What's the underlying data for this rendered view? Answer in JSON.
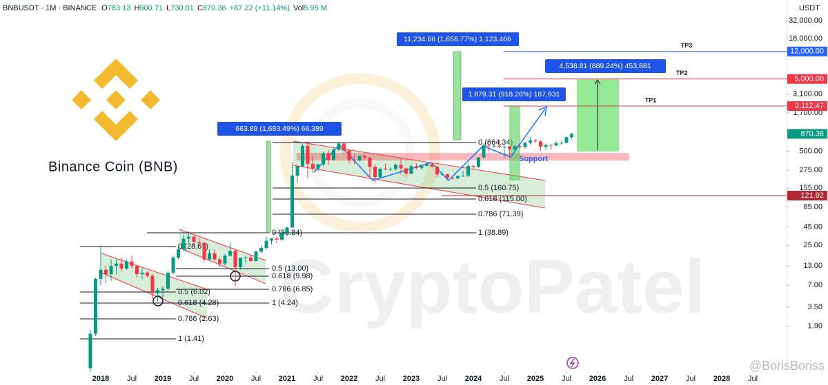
{
  "chart_data": {
    "type": "candlestick",
    "title": "Binance Coin (BNB)",
    "symbol": "BNBUSDT · 1M · BINANCE",
    "open_label": "O",
    "high_label": "H",
    "low_label": "L",
    "close_label": "C",
    "change": "+87.22 (+11.14%)",
    "volume_label": "Vol",
    "volume": "5.95 M",
    "y_axis_label": "USDT",
    "log_scale": true,
    "grid": false,
    "up_color": "#089981",
    "down_color": "#f23645",
    "xlim": [
      2016.378,
      2028.933
    ],
    "ylim": [
      0.445,
      61800
    ],
    "xticks": [
      2018,
      {
        "value": 2018.5,
        "label": "Jul"
      },
      2019,
      {
        "value": 2019.5,
        "label": "Jul"
      },
      2020,
      {
        "value": 2020.5,
        "label": "Jul"
      },
      2021,
      {
        "value": 2021.5,
        "label": "Jul"
      },
      2022,
      {
        "value": 2022.5,
        "label": "Jul"
      },
      2023,
      {
        "value": 2023.5,
        "label": "Jul"
      },
      2024,
      {
        "value": 2024.5,
        "label": "Jul"
      },
      2025,
      {
        "value": 2025.5,
        "label": "Jul"
      },
      2026,
      {
        "value": 2026.5,
        "label": "Jul"
      },
      2027,
      {
        "value": 2027.5,
        "label": "Jul"
      },
      2028,
      {
        "value": 2028.5,
        "label": "Jul"
      }
    ],
    "yticks": [
      {
        "value": 32000,
        "label": "32,000.00"
      },
      {
        "value": 18000,
        "label": "18,000.00"
      },
      {
        "value": 3100,
        "label": "3,100.00"
      },
      {
        "value": 1700,
        "label": "1,700.00"
      },
      {
        "value": 500,
        "label": "500.00"
      },
      {
        "value": 275,
        "label": "275.00"
      },
      {
        "value": 155,
        "label": "155.00"
      },
      {
        "value": 85,
        "label": "85.00"
      },
      {
        "value": 45,
        "label": "45.00"
      },
      {
        "value": 25,
        "label": "25.00"
      },
      {
        "value": 13,
        "label": "13.00"
      },
      {
        "value": 7,
        "label": "7.00"
      },
      {
        "value": 3.5,
        "label": "3.50"
      },
      {
        "value": 1.9,
        "label": "1.90"
      }
    ],
    "x": [
      2017.833,
      2017.917,
      2018.0,
      2018.083,
      2018.167,
      2018.25,
      2018.333,
      2018.417,
      2018.5,
      2018.583,
      2018.667,
      2018.75,
      2018.833,
      2018.917,
      2019.0,
      2019.083,
      2019.167,
      2019.25,
      2019.333,
      2019.417,
      2019.5,
      2019.583,
      2019.667,
      2019.75,
      2019.833,
      2019.917,
      2020.0,
      2020.083,
      2020.167,
      2020.25,
      2020.333,
      2020.417,
      2020.5,
      2020.583,
      2020.667,
      2020.75,
      2020.833,
      2020.917,
      2021.0,
      2021.083,
      2021.167,
      2021.25,
      2021.333,
      2021.417,
      2021.5,
      2021.583,
      2021.667,
      2021.75,
      2021.833,
      2021.917,
      2022.0,
      2022.083,
      2022.167,
      2022.25,
      2022.333,
      2022.417,
      2022.5,
      2022.583,
      2022.667,
      2022.75,
      2022.833,
      2022.917,
      2023.0,
      2023.083,
      2023.167,
      2023.25,
      2023.333,
      2023.417,
      2023.5,
      2023.583,
      2023.667,
      2023.75,
      2023.833,
      2023.917,
      2024.0,
      2024.083,
      2024.167,
      2024.25,
      2024.333,
      2024.417,
      2024.5,
      2024.583,
      2024.667,
      2024.75,
      2024.833,
      2024.917,
      2025.0,
      2025.083,
      2025.167,
      2025.25,
      2025.333,
      2025.417,
      2025.5,
      2025.583
    ],
    "open": [
      0.5,
      1.5,
      8.6,
      11.5,
      10,
      13,
      14,
      12,
      15,
      13,
      10,
      10.5,
      9.5,
      5.5,
      6,
      6.3,
      10.5,
      17,
      22,
      31,
      33,
      28,
      27,
      16,
      19.5,
      16,
      14,
      18,
      21,
      12.5,
      16.8,
      17,
      15.2,
      20.5,
      23,
      29,
      31,
      30,
      37.5,
      44,
      230,
      310,
      595,
      335,
      290,
      330,
      470,
      380,
      525,
      640,
      512,
      375,
      372,
      430,
      410,
      305,
      220,
      285,
      280,
      285,
      325,
      290,
      245,
      310,
      295,
      315,
      330,
      307,
      240,
      242,
      215,
      212,
      228,
      229,
      313,
      305,
      410,
      600,
      590,
      595,
      578,
      580,
      535,
      590,
      575,
      655,
      705,
      685,
      580,
      610,
      600,
      650,
      656,
      783.13
    ],
    "high": [
      1.7,
      9,
      25,
      13,
      16,
      16,
      17,
      16,
      18,
      13.5,
      12,
      11,
      10,
      6.5,
      6.8,
      11,
      18,
      25,
      35,
      39,
      34,
      32,
      28,
      22,
      22,
      17,
      19,
      27,
      22,
      17,
      18,
      18.5,
      21,
      25,
      33,
      32,
      33,
      42,
      45,
      348,
      312,
      638,
      691,
      433,
      340,
      500,
      518,
      550,
      669,
      650,
      535,
      440,
      447,
      447,
      410,
      330,
      300,
      340,
      300,
      340,
      398,
      298,
      333,
      337,
      330,
      350,
      345,
      313,
      260,
      245,
      220,
      230,
      270,
      337,
      325,
      415,
      645,
      622,
      620,
      720,
      600,
      590,
      610,
      610,
      680,
      794,
      740,
      700,
      640,
      620,
      700,
      680,
      800,
      900.71
    ],
    "low": [
      0.45,
      1.4,
      7,
      7.5,
      8,
      10,
      11,
      11.5,
      12,
      9,
      8.5,
      9,
      4.5,
      4.2,
      4.7,
      5.8,
      10,
      16,
      21,
      27,
      25,
      25,
      15,
      15.5,
      15,
      12.5,
      13,
      17.5,
      6.8,
      11.5,
      14.5,
      15,
      15,
      19.5,
      22,
      26,
      27,
      29,
      34,
      44,
      188,
      305,
      211,
      251,
      264,
      310,
      323,
      370,
      510,
      470,
      340,
      330,
      360,
      385,
      211,
      183,
      210,
      277,
      265,
      269,
      240,
      221,
      241,
      284,
      278,
      310,
      300,
      220,
      230,
      205,
      203,
      203,
      222,
      222,
      285,
      295,
      400,
      505,
      560,
      555,
      400,
      405,
      500,
      545,
      540,
      620,
      660,
      510,
      520,
      530,
      590,
      620,
      640,
      730.01
    ],
    "close": [
      1.5,
      8.6,
      11.5,
      10,
      13,
      14,
      12,
      15,
      13,
      10,
      10.5,
      9.5,
      5.5,
      6,
      6.3,
      10.5,
      17,
      22,
      31,
      33,
      28,
      27,
      16,
      19.5,
      16,
      14,
      18,
      21,
      12.5,
      16.8,
      17,
      15.2,
      20.5,
      23,
      29,
      31,
      30,
      37.5,
      44,
      230,
      310,
      595,
      335,
      290,
      330,
      470,
      380,
      525,
      640,
      512,
      375,
      372,
      430,
      410,
      305,
      220,
      285,
      280,
      285,
      325,
      290,
      245,
      310,
      295,
      315,
      330,
      307,
      240,
      242,
      215,
      212,
      228,
      229,
      313,
      305,
      410,
      600,
      590,
      595,
      578,
      580,
      535,
      590,
      575,
      655,
      705,
      685,
      580,
      610,
      600,
      650,
      656,
      783.13,
      870.36
    ],
    "price_lines": [
      {
        "name": "TP3",
        "value": 12000,
        "label": "12,000.00",
        "color": "#2962ff",
        "line": true
      },
      {
        "name": "TP2",
        "value": 5000,
        "label": "5,000.00",
        "color": "#f23645",
        "line": true
      },
      {
        "name": "TP1",
        "value": 2112.47,
        "label": "2,112.47",
        "color": "#f23645",
        "line": true
      },
      {
        "value": 870.36,
        "color": "#089981",
        "line": false
      },
      {
        "value": 121.92,
        "color": "#b22833",
        "line": true
      }
    ],
    "measures": [
      {
        "label": "11,234.66 (1,658.77%) 1,123,466"
      },
      {
        "label": "4,538.81 (889.24%) 453,881"
      },
      {
        "label": "1,879.31 (918.26%) 187,931"
      },
      {
        "label": "663.89 (1,683.49%) 66,389"
      }
    ],
    "fib_a": [
      "0 (28.67)",
      "0.5 (6.02)",
      "0.618 (4.28)",
      "0.786 (2.63)",
      "1 (1.41)"
    ],
    "fib_b": [
      "0 (38.84)",
      "0.5 (13.00)",
      "0.618 (9.98)",
      "0.786 (6.85)",
      "1 (4.24)"
    ],
    "fib_c": [
      "0 (664.34)",
      "0.5 (160.75)",
      "0.618 (115.00)",
      "0.786 (71.39)",
      "1 (38.89)"
    ],
    "support_label": "Support"
  },
  "watermark": "CryptoPatel",
  "credit": "@BorisBoriss"
}
